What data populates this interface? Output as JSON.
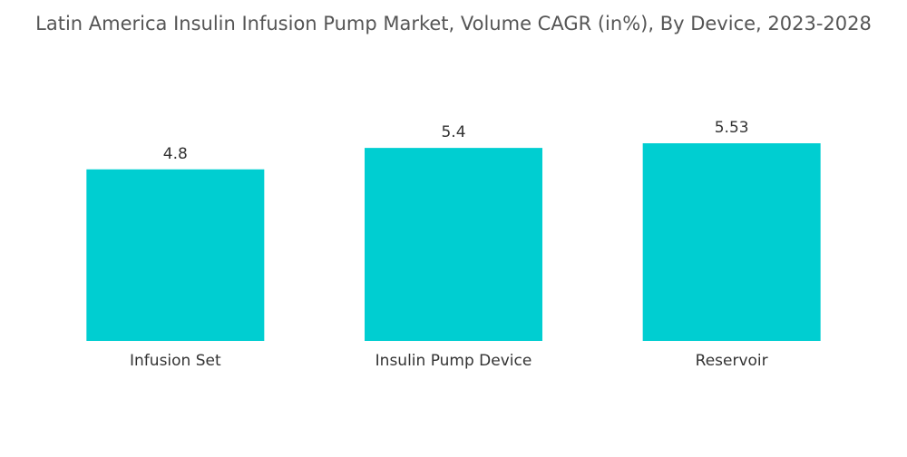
{
  "chart_data": {
    "type": "bar",
    "title": "Latin America Insulin Infusion Pump Market, Volume CAGR (in%), By Device, 2023-2028",
    "categories": [
      "Infusion Set",
      "Insulin Pump Device",
      "Reservoir"
    ],
    "values": [
      4.8,
      5.4,
      5.53
    ],
    "value_labels": [
      "4.8",
      "5.4",
      "5.53"
    ],
    "bar_color": "#00CED1",
    "xlabel": "",
    "ylabel": "",
    "ylim": [
      0,
      5.53
    ],
    "grid": false,
    "legend": "none"
  }
}
